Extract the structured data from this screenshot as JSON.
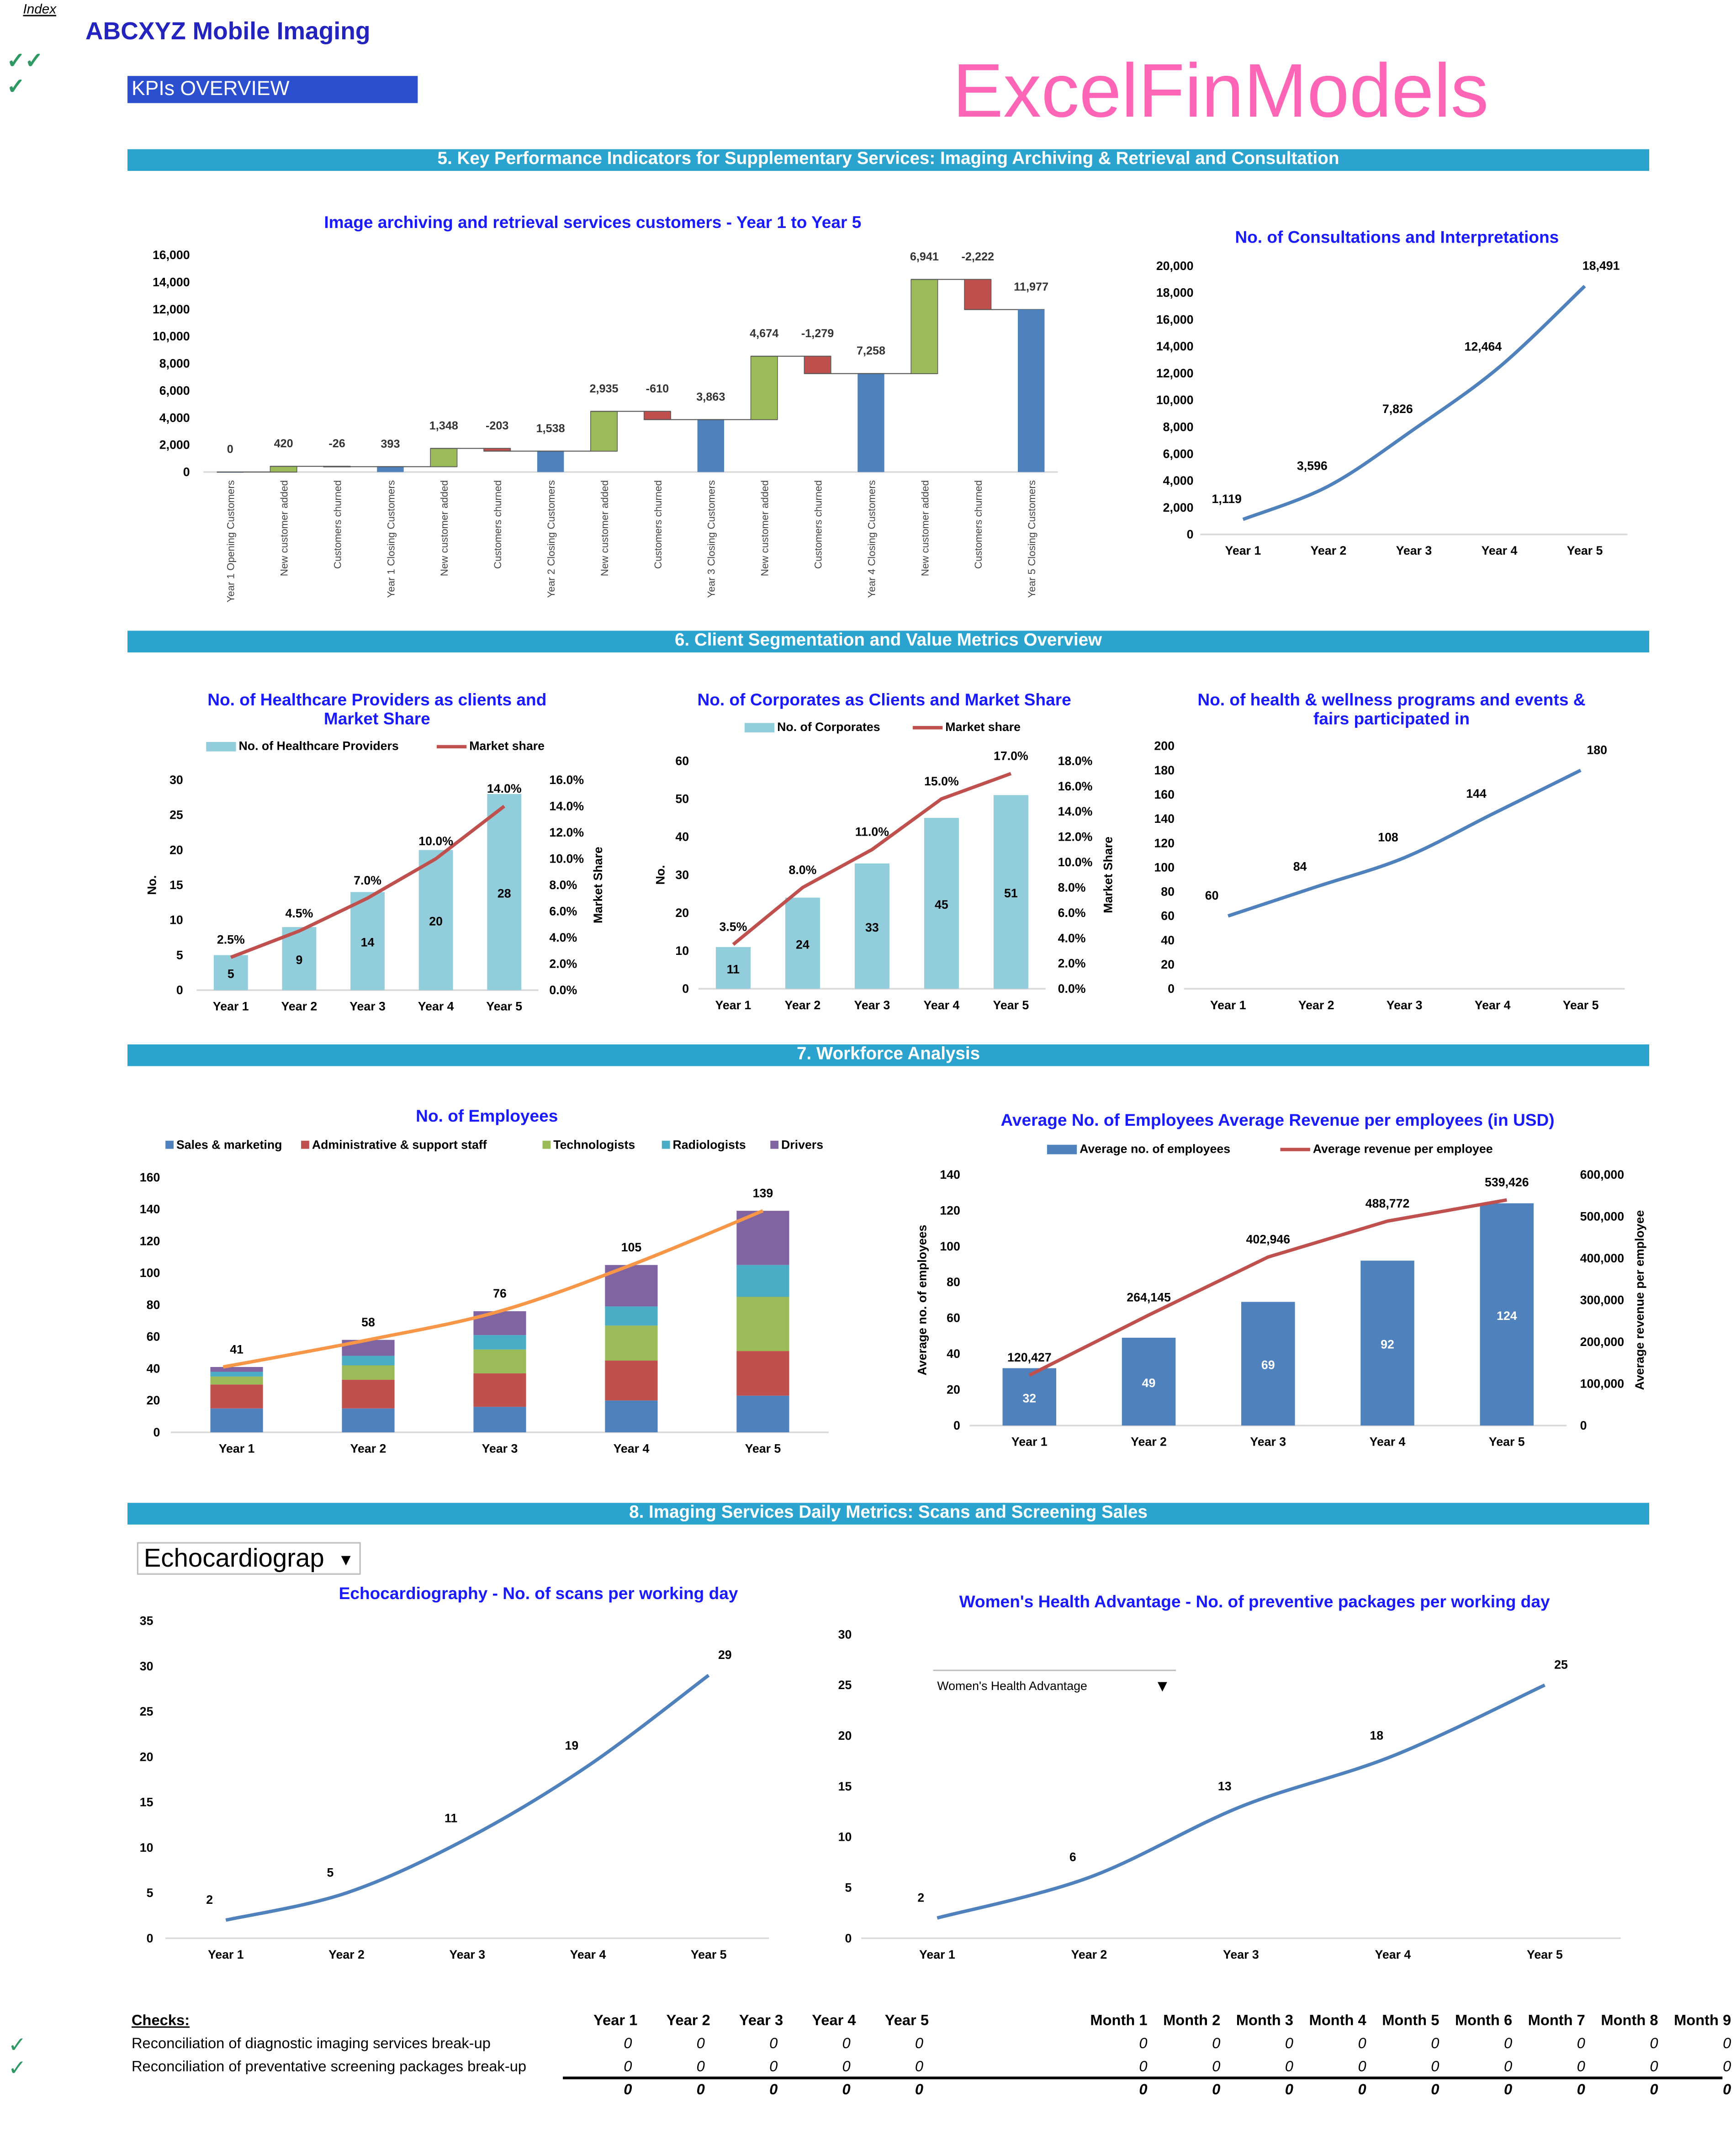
{
  "header": {
    "index_link": "Index",
    "title": "ABCXYZ Mobile Imaging",
    "kpi_banner": "KPIs OVERVIEW",
    "check_marks": [
      "✓✓",
      "✓"
    ]
  },
  "sections": [
    "5. Key Performance Indicators for Supplementary Services: Imaging Archiving & Retrieval and Consultation",
    "6. Client Segmentation and Value Metrics Overview",
    "7. Workforce Analysis",
    "8. Imaging Services Daily Metrics: Scans and Screening Sales"
  ],
  "dropdowns": {
    "service": "Echocardiograp",
    "package": "Women's Health Advantage"
  },
  "watermark": "ExcelFinModels",
  "colors": {
    "title": "#2323c0",
    "section": "#2aa4cf",
    "kpi": "#2b4fce",
    "blue": "#4f81bd",
    "green": "#9bbb59",
    "red": "#c0504d",
    "aqua": "#4bacc6",
    "purple": "#8064a2",
    "orange": "#f79646",
    "lightblue": "#92cddc",
    "check": "#2e9a63"
  },
  "chart_data": [
    {
      "type": "waterfall",
      "title": "Image archiving and retrieval services customers - Year 1 to Year 5",
      "categories": [
        "Year 1 Opening Customers",
        "New customer added",
        "Customers churned",
        "Year 1 Closing Customers",
        "New customer added",
        "Customers churned",
        "Year 2 Closing Customers",
        "New customer added",
        "Customers churned",
        "Year 3 Closing Customers",
        "New customer added",
        "Customers churned",
        "Year 4 Closing Customers",
        "New customer added",
        "Customers churned",
        "Year 5 Closing Customers"
      ],
      "values": [
        0,
        420,
        -26,
        393,
        1348,
        -203,
        1538,
        2935,
        -610,
        3863,
        4674,
        -1279,
        7258,
        6941,
        -2222,
        11977
      ],
      "kinds": [
        "total",
        "add",
        "churn",
        "total",
        "add",
        "churn",
        "total",
        "add",
        "churn",
        "total",
        "add",
        "churn",
        "total",
        "add",
        "churn",
        "total"
      ],
      "ylim": [
        0,
        16000
      ],
      "ystep": 2000,
      "grid": false
    },
    {
      "type": "line",
      "title": "No. of Consultations and Interpretations",
      "categories": [
        "Year 1",
        "Year 2",
        "Year 3",
        "Year 4",
        "Year 5"
      ],
      "values": [
        1119,
        3596,
        7826,
        12464,
        18491
      ],
      "ylim": [
        0,
        20000
      ],
      "ystep": 2000,
      "grid": false
    },
    {
      "type": "bar+line",
      "title": [
        "No. of Healthcare Providers as clients and",
        "Market Share"
      ],
      "categories": [
        "Year 1",
        "Year 2",
        "Year 3",
        "Year 4",
        "Year 5"
      ],
      "series": [
        {
          "name": "No. of Healthcare Providers",
          "type": "bar",
          "values": [
            5,
            9,
            14,
            20,
            28
          ]
        },
        {
          "name": "Market share",
          "type": "line",
          "axis": "right",
          "values": [
            2.5,
            4.5,
            7.0,
            10.0,
            14.0
          ]
        }
      ],
      "ylim": [
        0,
        30
      ],
      "ystep": 5,
      "y2lim": [
        0,
        16
      ],
      "y2step": 2,
      "ylabel": "No.",
      "y2label": "Market Share",
      "legend": "top"
    },
    {
      "type": "bar+line",
      "title": [
        "No. of Corporates as Clients and Market Share"
      ],
      "categories": [
        "Year 1",
        "Year 2",
        "Year 3",
        "Year 4",
        "Year 5"
      ],
      "series": [
        {
          "name": "No. of Corporates",
          "type": "bar",
          "values": [
            11,
            24,
            33,
            45,
            51
          ]
        },
        {
          "name": "Market share",
          "type": "line",
          "axis": "right",
          "values": [
            3.5,
            8.0,
            11.0,
            15.0,
            17.0
          ]
        }
      ],
      "ylim": [
        0,
        60
      ],
      "ystep": 10,
      "y2lim": [
        0,
        18
      ],
      "y2step": 2,
      "ylabel": "No.",
      "y2label": "Market Share",
      "legend": "top"
    },
    {
      "type": "line",
      "title": [
        "No. of  health & wellness programs and events &",
        "fairs participated in"
      ],
      "categories": [
        "Year 1",
        "Year 2",
        "Year 3",
        "Year 4",
        "Year 5"
      ],
      "values": [
        60,
        84,
        108,
        144,
        180
      ],
      "ylim": [
        0,
        200
      ],
      "ystep": 20
    },
    {
      "type": "stacked-bar",
      "title": "No. of Employees",
      "categories": [
        "Year 1",
        "Year 2",
        "Year 3",
        "Year 4",
        "Year 5"
      ],
      "series": [
        {
          "name": "Sales & marketing",
          "values": [
            15,
            15,
            16,
            20,
            23
          ]
        },
        {
          "name": "Administrative & support staff",
          "values": [
            15,
            18,
            21,
            25,
            28
          ]
        },
        {
          "name": "Technologists",
          "values": [
            5,
            9,
            15,
            22,
            34
          ]
        },
        {
          "name": "Radiologists",
          "values": [
            3,
            6,
            9,
            12,
            20
          ]
        },
        {
          "name": "Drivers",
          "values": [
            3,
            10,
            15,
            26,
            34
          ]
        }
      ],
      "totals": [
        41,
        58,
        76,
        105,
        139
      ],
      "ylim": [
        0,
        160
      ],
      "ystep": 20,
      "legend": "top"
    },
    {
      "type": "bar+line",
      "title": "Average No. of Employees Average Revenue per employees (in USD)",
      "categories": [
        "Year 1",
        "Year 2",
        "Year 3",
        "Year 4",
        "Year 5"
      ],
      "series": [
        {
          "name": "Average no. of employees",
          "type": "bar",
          "values": [
            32,
            49,
            69,
            92,
            124
          ]
        },
        {
          "name": "Average revenue per employee",
          "type": "line",
          "axis": "right",
          "values": [
            120427,
            264145,
            402946,
            488772,
            539426
          ]
        }
      ],
      "ylim": [
        0,
        140
      ],
      "ystep": 20,
      "y2lim": [
        0,
        600000
      ],
      "y2step": 100000,
      "ylabel": "Average no. of employees",
      "y2label": "Average revenue per employee",
      "legend": "top"
    },
    {
      "type": "line",
      "title": "Echocardiography -  No. of scans per working day",
      "categories": [
        "Year 1",
        "Year 2",
        "Year 3",
        "Year 4",
        "Year 5"
      ],
      "values": [
        2,
        5,
        11,
        19,
        29
      ],
      "ylim": [
        0,
        35
      ],
      "ystep": 5
    },
    {
      "type": "line",
      "title": "Women's Health Advantage -  No. of preventive packages per working day",
      "categories": [
        "Year 1",
        "Year 2",
        "Year 3",
        "Year 4",
        "Year 5"
      ],
      "values": [
        2,
        6,
        13,
        18,
        25
      ],
      "ylim": [
        0,
        30
      ],
      "ystep": 5
    }
  ],
  "checks": {
    "title": "Checks:",
    "year_headers": [
      "Year 1",
      "Year 2",
      "Year 3",
      "Year 4",
      "Year 5"
    ],
    "month_headers": [
      "Month 1",
      "Month 2",
      "Month 3",
      "Month 4",
      "Month 5",
      "Month 6",
      "Month 7",
      "Month 8",
      "Month 9"
    ],
    "rows": [
      {
        "label": "Reconciliation of diagnostic imaging services break-up",
        "mark": "✓",
        "years": [
          0,
          0,
          0,
          0,
          0
        ],
        "months": [
          0,
          0,
          0,
          0,
          0,
          0,
          0,
          0,
          0
        ]
      },
      {
        "label": "Reconciliation of preventative screening packages break-up",
        "mark": "✓",
        "years": [
          0,
          0,
          0,
          0,
          0
        ],
        "months": [
          0,
          0,
          0,
          0,
          0,
          0,
          0,
          0,
          0
        ]
      }
    ],
    "totals": {
      "years": [
        0,
        0,
        0,
        0,
        0
      ],
      "months": [
        0,
        0,
        0,
        0,
        0,
        0,
        0,
        0,
        0
      ]
    }
  }
}
